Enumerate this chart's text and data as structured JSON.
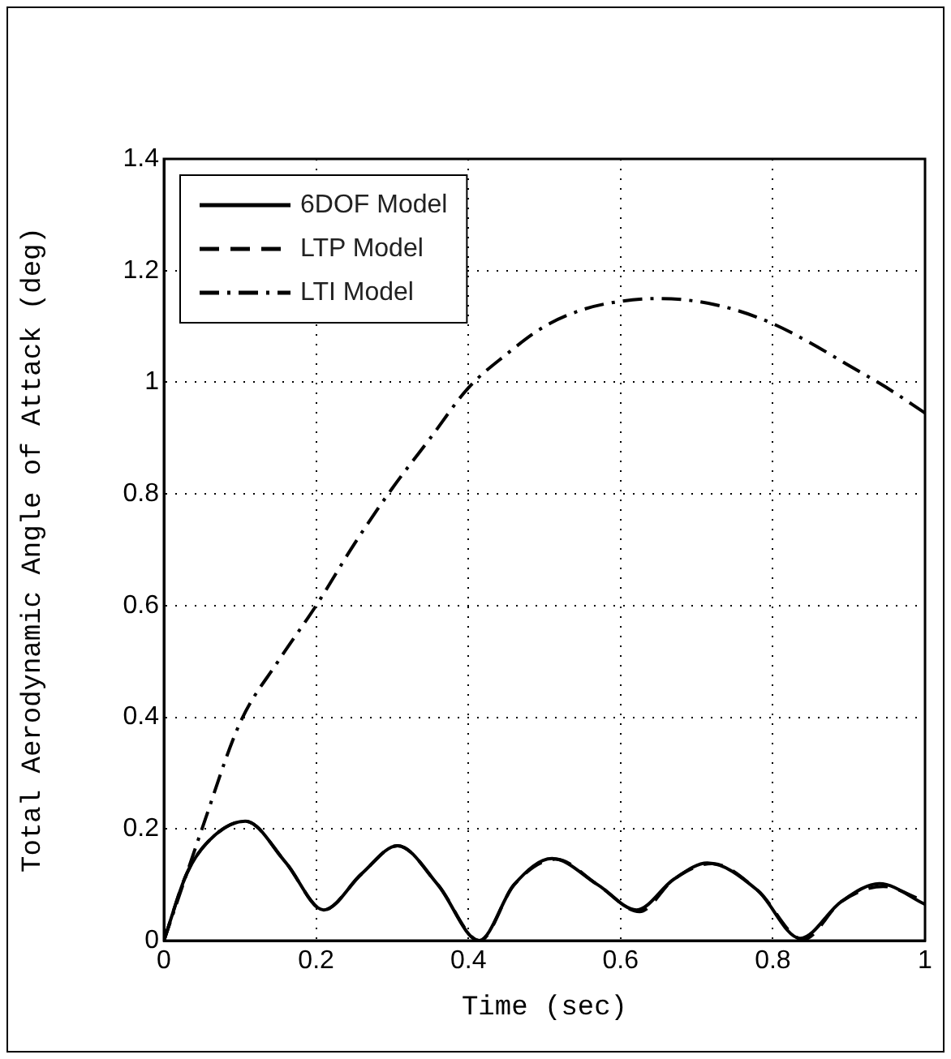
{
  "chart_data": {
    "type": "line",
    "xlabel": "Time (sec)",
    "ylabel": "Total Aerodynamic Angle of Attack (deg)",
    "xlim": [
      0,
      1
    ],
    "xticks": [
      0,
      0.2,
      0.4,
      0.6,
      0.8,
      1
    ],
    "ylim": [
      0,
      1.4
    ],
    "yticks": [
      0,
      0.2,
      0.4,
      0.6,
      0.8,
      1,
      1.2,
      1.4
    ],
    "grid": true,
    "legend": "top left",
    "marker": "none",
    "series": [
      {
        "name": "6DOF Model",
        "color": "#000000",
        "line_style": "solid",
        "x": [
          0,
          0.03,
          0.06,
          0.107,
          0.16,
          0.21,
          0.26,
          0.307,
          0.36,
          0.414,
          0.46,
          0.51,
          0.57,
          0.621,
          0.67,
          0.714,
          0.78,
          0.836,
          0.89,
          0.94,
          1
        ],
        "values": [
          0,
          0.12,
          0.18,
          0.214,
          0.14,
          0.055,
          0.12,
          0.17,
          0.1,
          0,
          0.1,
          0.147,
          0.1,
          0.055,
          0.11,
          0.139,
          0.09,
          0.004,
          0.07,
          0.102,
          0.065
        ]
      },
      {
        "name": "LTP Model",
        "color": "#000000",
        "line_style": "dashed",
        "x": [
          0,
          0.03,
          0.06,
          0.107,
          0.16,
          0.21,
          0.26,
          0.307,
          0.36,
          0.415,
          0.46,
          0.515,
          0.57,
          0.625,
          0.67,
          0.72,
          0.78,
          0.84,
          0.89,
          0.945,
          1
        ],
        "values": [
          0,
          0.12,
          0.18,
          0.214,
          0.14,
          0.055,
          0.12,
          0.17,
          0.1,
          0,
          0.1,
          0.146,
          0.1,
          0.052,
          0.11,
          0.138,
          0.09,
          0.002,
          0.07,
          0.097,
          0.07
        ]
      },
      {
        "name": "LTI Model",
        "color": "#000000",
        "line_style": "dashdot",
        "x": [
          0,
          0.025,
          0.05,
          0.1,
          0.15,
          0.2,
          0.25,
          0.3,
          0.35,
          0.4,
          0.45,
          0.5,
          0.55,
          0.6,
          0.65,
          0.7,
          0.75,
          0.8,
          0.85,
          0.9,
          0.95,
          1
        ],
        "values": [
          0,
          0.1,
          0.2,
          0.39,
          0.5,
          0.6,
          0.71,
          0.81,
          0.9,
          0.99,
          1.05,
          1.1,
          1.13,
          1.145,
          1.15,
          1.145,
          1.13,
          1.105,
          1.07,
          1.03,
          0.99,
          0.945
        ]
      }
    ]
  }
}
